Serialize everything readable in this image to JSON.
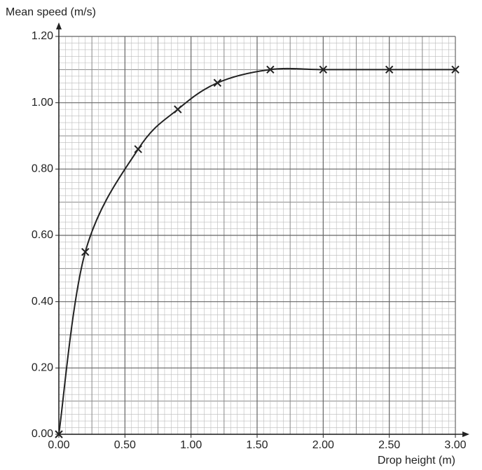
{
  "chart_data": {
    "type": "scatter",
    "y_label": "Mean speed (m/s)",
    "x_label": "Drop height (m)",
    "x": [
      0,
      0.2,
      0.6,
      0.9,
      1.2,
      1.6,
      2.0,
      2.5,
      3.0
    ],
    "series": [
      {
        "color": "#222222",
        "values": [
          0,
          0.55,
          0.86,
          0.98,
          1.06,
          1.1,
          1.1,
          1.1,
          1.1
        ]
      }
    ],
    "xlim": [
      0,
      3
    ],
    "ylim": [
      0,
      1.2
    ],
    "xticks": [
      {
        "value": 0,
        "label": "0.00"
      },
      {
        "value": 0.5,
        "label": "0.50"
      },
      {
        "value": 1,
        "label": "1.00"
      },
      {
        "value": 1.5,
        "label": "1.50"
      },
      {
        "value": 2,
        "label": "2.00"
      },
      {
        "value": 2.5,
        "label": "2.50"
      },
      {
        "value": 3,
        "label": "3.00"
      }
    ],
    "yticks": [
      {
        "value": 0,
        "label": "0.00"
      },
      {
        "value": 0.2,
        "label": "0.20"
      },
      {
        "value": 0.4,
        "label": "0.40"
      },
      {
        "value": 0.6,
        "label": "0.60"
      },
      {
        "value": 0.8,
        "label": "0.80"
      },
      {
        "value": 1,
        "label": "1.00"
      },
      {
        "value": 1.2,
        "label": "1.20"
      }
    ],
    "grid": true
  }
}
